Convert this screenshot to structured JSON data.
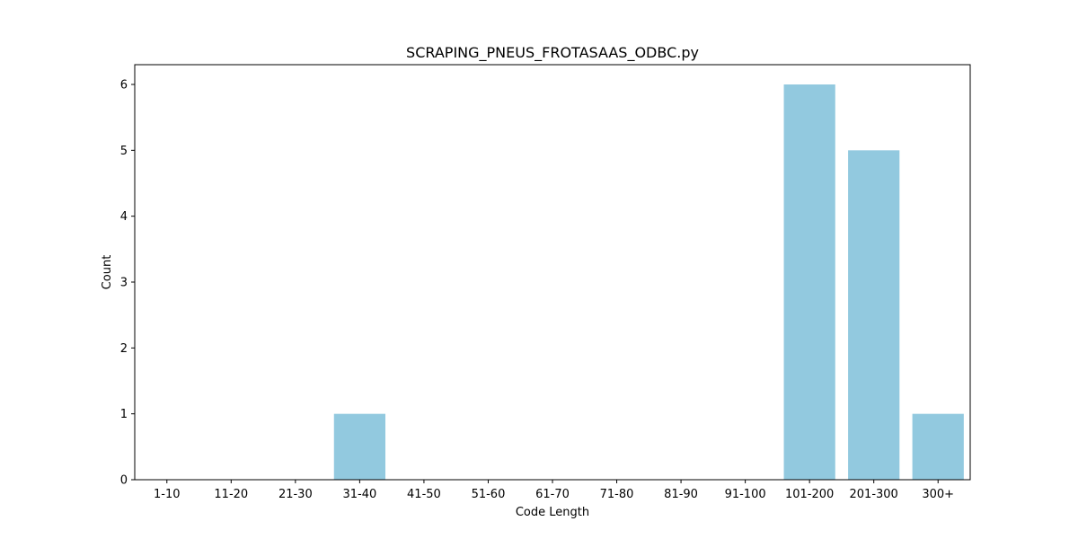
{
  "chart_data": {
    "type": "bar",
    "title": "SCRAPING_PNEUS_FROTASAAS_ODBC.py",
    "xlabel": "Code Length",
    "ylabel": "Count",
    "categories": [
      "1-10",
      "11-20",
      "21-30",
      "31-40",
      "41-50",
      "51-60",
      "61-70",
      "71-80",
      "81-90",
      "91-100",
      "101-200",
      "201-300",
      "300+"
    ],
    "values": [
      0,
      0,
      0,
      1,
      0,
      0,
      0,
      0,
      0,
      0,
      6,
      5,
      1
    ],
    "ylim": [
      0,
      6.3
    ],
    "yticks": [
      0,
      1,
      2,
      3,
      4,
      5,
      6
    ],
    "grid": false,
    "legend": "none",
    "bar_color": "#92c9df"
  }
}
